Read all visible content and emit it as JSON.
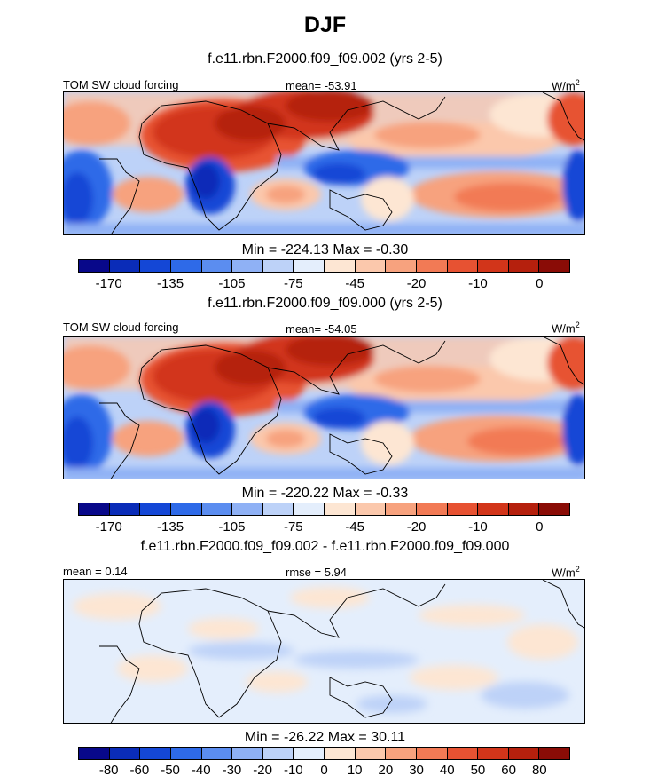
{
  "figure": {
    "title": "DJF"
  },
  "panels": [
    {
      "id": "top",
      "title": "f.e11.rbn.F2000.f09_f09.002 (yrs 2-5)",
      "left_label": "TOM SW cloud forcing",
      "center_label": "mean= -53.91",
      "units": "W/m",
      "units_sup": "2",
      "minmax": "Min = -224.13 Max =  -0.30"
    },
    {
      "id": "middle",
      "title": "f.e11.rbn.F2000.f09_f09.000 (yrs 2-5)",
      "left_label": "TOM SW cloud forcing",
      "center_label": "mean= -54.05",
      "units": "W/m",
      "units_sup": "2",
      "minmax": "Min = -220.22 Max =  -0.33"
    },
    {
      "id": "bottom",
      "title": "f.e11.rbn.F2000.f09_f09.002 - f.e11.rbn.F2000.f09_f09.000",
      "left_label": "mean =   0.14",
      "center_label": "rmse =    5.94",
      "units": "W/m",
      "units_sup": "2",
      "minmax": "Min = -26.22 Max =  30.11"
    }
  ],
  "colorbars": {
    "main": {
      "colors": [
        "#08088a",
        "#0a2cb8",
        "#1447d6",
        "#2e6ae8",
        "#5b8df0",
        "#8fb1f5",
        "#bdd2f8",
        "#e4eefc",
        "#fde6d3",
        "#fbc8ac",
        "#f7a27e",
        "#f27a55",
        "#e75232",
        "#d2351a",
        "#b5200d",
        "#8a0c06"
      ],
      "ticks": [
        "-170",
        "-135",
        "-105",
        "-75",
        "-45",
        "-20",
        "-10",
        "0"
      ]
    },
    "diff": {
      "colors": [
        "#08088a",
        "#0a2cb8",
        "#1447d6",
        "#2e6ae8",
        "#5b8df0",
        "#8fb1f5",
        "#bdd2f8",
        "#e4eefc",
        "#fde6d3",
        "#fbc8ac",
        "#f7a27e",
        "#f27a55",
        "#e75232",
        "#d2351a",
        "#b5200d",
        "#8a0c06"
      ],
      "ticks": [
        "-80",
        "-60",
        "-50",
        "-40",
        "-30",
        "-20",
        "-10",
        "0",
        "10",
        "20",
        "30",
        "40",
        "50",
        "60",
        "80"
      ]
    }
  },
  "chart_data": [
    {
      "type": "heatmap",
      "title": "f.e11.rbn.F2000.f09_f09.002 (yrs 2-5)",
      "variable": "TOM SW cloud forcing",
      "units": "W/m2",
      "mean": -53.91,
      "min": -224.13,
      "max": -0.3,
      "levels": [
        -170,
        -135,
        -105,
        -75,
        -45,
        -20,
        -10,
        0
      ],
      "legend": "bottom"
    },
    {
      "type": "heatmap",
      "title": "f.e11.rbn.F2000.f09_f09.000 (yrs 2-5)",
      "variable": "TOM SW cloud forcing",
      "units": "W/m2",
      "mean": -54.05,
      "min": -220.22,
      "max": -0.33,
      "levels": [
        -170,
        -135,
        -105,
        -75,
        -45,
        -20,
        -10,
        0
      ],
      "legend": "bottom"
    },
    {
      "type": "heatmap",
      "title": "f.e11.rbn.F2000.f09_f09.002 - f.e11.rbn.F2000.f09_f09.000",
      "units": "W/m2",
      "mean": 0.14,
      "rmse": 5.94,
      "min": -26.22,
      "max": 30.11,
      "levels": [
        -80,
        -60,
        -50,
        -40,
        -30,
        -20,
        -10,
        0,
        10,
        20,
        30,
        40,
        50,
        60,
        80
      ],
      "legend": "bottom"
    }
  ]
}
